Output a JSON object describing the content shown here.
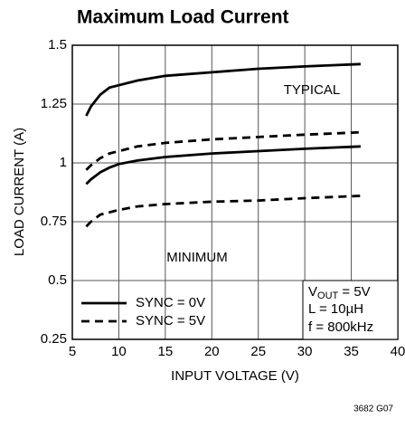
{
  "chart_data": {
    "type": "line",
    "title": "Maximum Load Current",
    "x_label": "INPUT VOLTAGE (V)",
    "y_label": "LOAD CURRENT (A)",
    "footnote": "3682 G07",
    "x": [
      6.5,
      7,
      8,
      9,
      10,
      12,
      15,
      20,
      25,
      30,
      36
    ],
    "series": [
      {
        "name": "SYNC = 0V",
        "group": "TYPICAL",
        "dashed": false,
        "color": "#000000",
        "values": [
          1.2,
          1.24,
          1.29,
          1.32,
          1.33,
          1.35,
          1.37,
          1.385,
          1.4,
          1.41,
          1.42
        ]
      },
      {
        "name": "SYNC = 5V",
        "group": "TYPICAL",
        "dashed": true,
        "color": "#000000",
        "values": [
          0.97,
          0.99,
          1.02,
          1.04,
          1.05,
          1.07,
          1.085,
          1.1,
          1.11,
          1.12,
          1.13
        ]
      },
      {
        "name": "SYNC = 0V",
        "group": "MINIMUM",
        "dashed": false,
        "color": "#000000",
        "values": [
          0.91,
          0.93,
          0.96,
          0.98,
          0.995,
          1.01,
          1.025,
          1.04,
          1.05,
          1.06,
          1.07
        ]
      },
      {
        "name": "SYNC = 5V",
        "group": "MINIMUM",
        "dashed": true,
        "color": "#000000",
        "values": [
          0.73,
          0.75,
          0.78,
          0.79,
          0.8,
          0.815,
          0.825,
          0.835,
          0.84,
          0.85,
          0.86
        ]
      }
    ],
    "conditions": {
      "vout_symbol": "V",
      "vout_sub": "OUT",
      "vout_rest": " = 5V",
      "inductor": "L = 10µH",
      "frequency": "f = 800kHz"
    },
    "xlim": [
      5,
      40
    ],
    "xticks": [
      5,
      10,
      15,
      20,
      25,
      30,
      35,
      40
    ],
    "ylim": [
      0.25,
      1.5
    ],
    "yticks": [
      0.25,
      0.5,
      0.75,
      1,
      1.25,
      1.5
    ],
    "grid": true,
    "legend": "lower left"
  }
}
